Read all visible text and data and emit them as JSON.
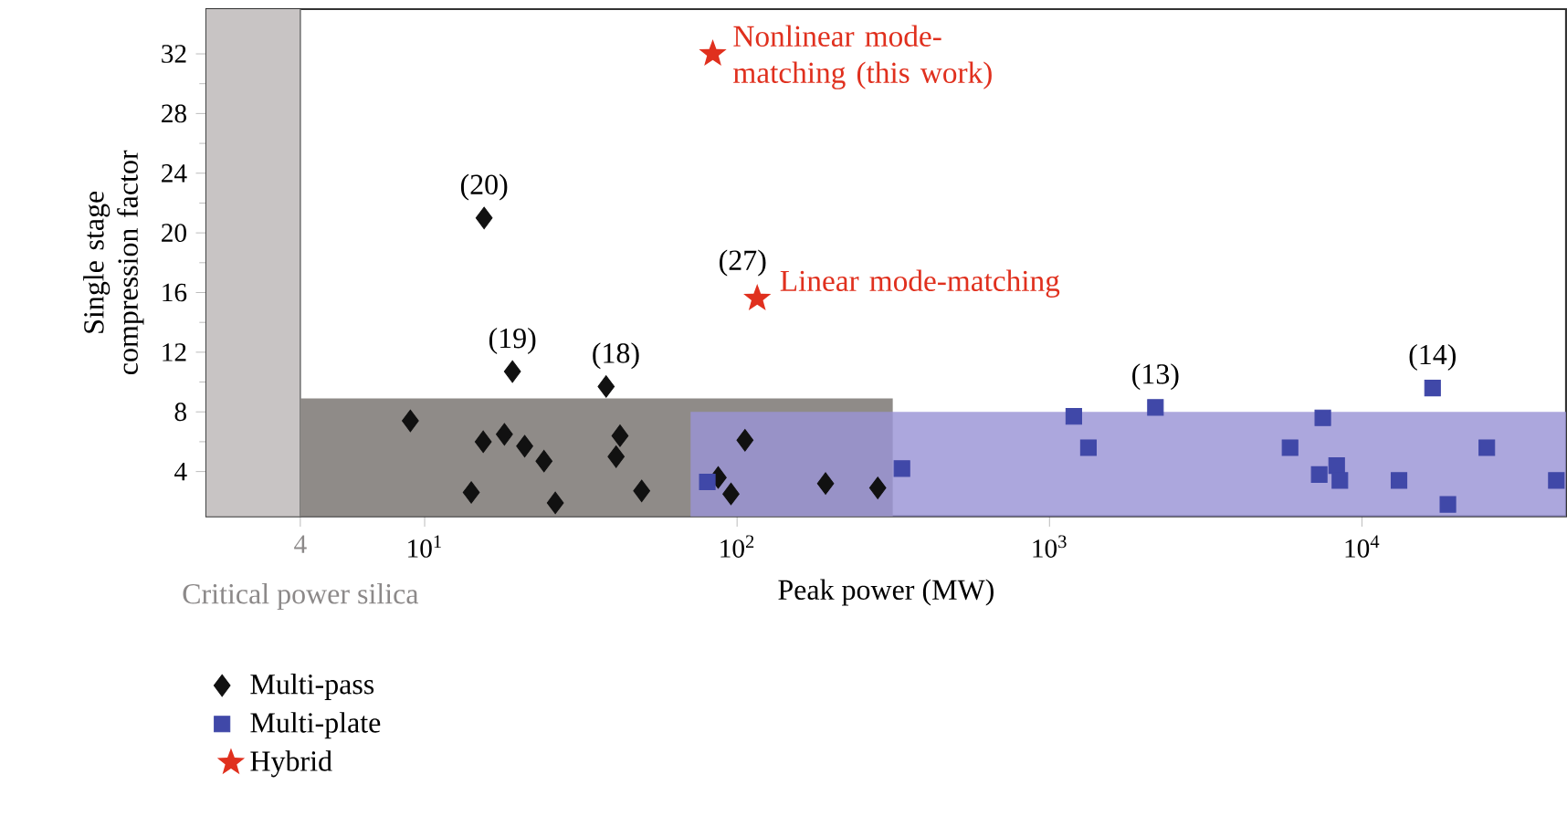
{
  "chart_data": {
    "type": "scatter",
    "xlabel": "Peak power (MW)",
    "ylabel": "Single stage compression factor",
    "log": "x",
    "xlim": [
      2,
      45000
    ],
    "ylim": [
      1,
      35
    ],
    "xticks": [
      {
        "value": 4,
        "label": "4"
      },
      {
        "value": 10,
        "label": "10$^{1}$"
      },
      {
        "value": 100,
        "label": "10$^{2}$"
      },
      {
        "value": 1000,
        "label": "10$^{3}$"
      },
      {
        "value": 10000,
        "label": "10$^{4}$"
      }
    ],
    "yticks": [
      4,
      8,
      12,
      16,
      20,
      24,
      28,
      32
    ],
    "legend": "bottom left",
    "bands": [
      {
        "axis": "x",
        "from": 2,
        "to": 4,
        "label": "Critical power silica",
        "color": "#c8c4c4"
      }
    ],
    "series": [
      {
        "type": "area",
        "color": "#8f8b88",
        "x": [
          4,
          315
        ],
        "values": [
          8.9,
          8.9
        ]
      },
      {
        "type": "area",
        "color": "#9a94d6",
        "x": [
          71,
          45000
        ],
        "values": [
          8.0,
          8.0
        ]
      },
      {
        "name": "Multi-pass",
        "color": "#111111",
        "marker": "diamond",
        "x": [
          9.0,
          15.5,
          19.1,
          38.1,
          15.4,
          18.0,
          20.9,
          24.1,
          14.1,
          26.2,
          42.2,
          41.0,
          49.5,
          106,
          87,
          95.6,
          192,
          282
        ],
        "values": [
          7.4,
          21.0,
          10.7,
          9.7,
          6.0,
          6.5,
          5.7,
          4.7,
          2.6,
          1.9,
          6.4,
          5.0,
          2.7,
          6.1,
          3.6,
          2.5,
          3.2,
          2.9
        ]
      },
      {
        "name": "Multi-plate",
        "color": "#4048a8",
        "marker": "square",
        "x": [
          80.3,
          337,
          1196,
          1332,
          2183,
          5887,
          7494,
          7300,
          8300,
          8500,
          13140,
          16830,
          18840,
          25100,
          41900
        ],
        "values": [
          3.3,
          4.2,
          7.7,
          5.6,
          8.3,
          5.6,
          7.6,
          3.8,
          4.4,
          3.4,
          3.4,
          9.6,
          1.8,
          5.6,
          3.4
        ]
      },
      {
        "name": "Hybrid",
        "color": "#e0301e",
        "marker": "star",
        "x": [
          83.6,
          116
        ],
        "values": [
          32.0,
          15.6
        ]
      }
    ],
    "annotations": [
      {
        "text": "(20)",
        "x": 15.5,
        "y": 21.0
      },
      {
        "text": "(19)",
        "x": 19.1,
        "y": 10.7
      },
      {
        "text": "(18)",
        "x": 38.1,
        "y": 9.7
      },
      {
        "text": "(27)",
        "x": 116,
        "y": 15.6
      },
      {
        "text": "(13)",
        "x": 2183,
        "y": 8.3
      },
      {
        "text": "(14)",
        "x": 16830,
        "y": 9.6
      },
      {
        "text": "Nonlinear mode-matching (this work)",
        "x": 83.6,
        "y": 32.0
      },
      {
        "text": "Linear mode-matching",
        "x": 116,
        "y": 15.6
      }
    ]
  }
}
